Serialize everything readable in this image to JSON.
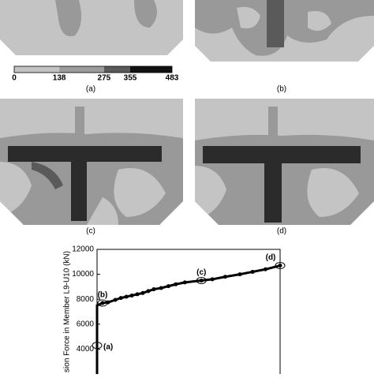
{
  "colorbar": {
    "ticks": [
      0,
      138,
      275,
      355,
      483
    ],
    "colors": [
      "#c2c2c2",
      "#9c9c9c",
      "#5a5a5a",
      "#111111"
    ]
  },
  "panels": [
    "(a)",
    "(b)",
    "(c)",
    "(d)"
  ],
  "chart_data": {
    "type": "line",
    "ylabel": "sion Force in Member L9-U10 (kN)",
    "ylim": [
      2000,
      12000
    ],
    "yticks": [
      4000,
      6000,
      8000,
      10000,
      12000
    ],
    "xlim": [
      0,
      100
    ],
    "series": [
      {
        "color": "#000000",
        "x": [
          0,
          0,
          0,
          3,
          6,
          10,
          13,
          16,
          19,
          22,
          25,
          28,
          31,
          35,
          39,
          43,
          48,
          57,
          63,
          70,
          78,
          85,
          92,
          100
        ],
        "values": [
          2000,
          4300,
          7500,
          7700,
          7750,
          7950,
          8100,
          8200,
          8300,
          8400,
          8500,
          8650,
          8800,
          8900,
          9050,
          9200,
          9350,
          9500,
          9600,
          9800,
          10000,
          10200,
          10400,
          10700
        ]
      }
    ],
    "annotations": [
      {
        "text": "(a)",
        "x": 0,
        "y": 4300
      },
      {
        "text": "(b)",
        "x": 3,
        "y": 7700
      },
      {
        "text": "(c)",
        "x": 57,
        "y": 9500
      },
      {
        "text": "(d)",
        "x": 100,
        "y": 10700
      }
    ]
  }
}
